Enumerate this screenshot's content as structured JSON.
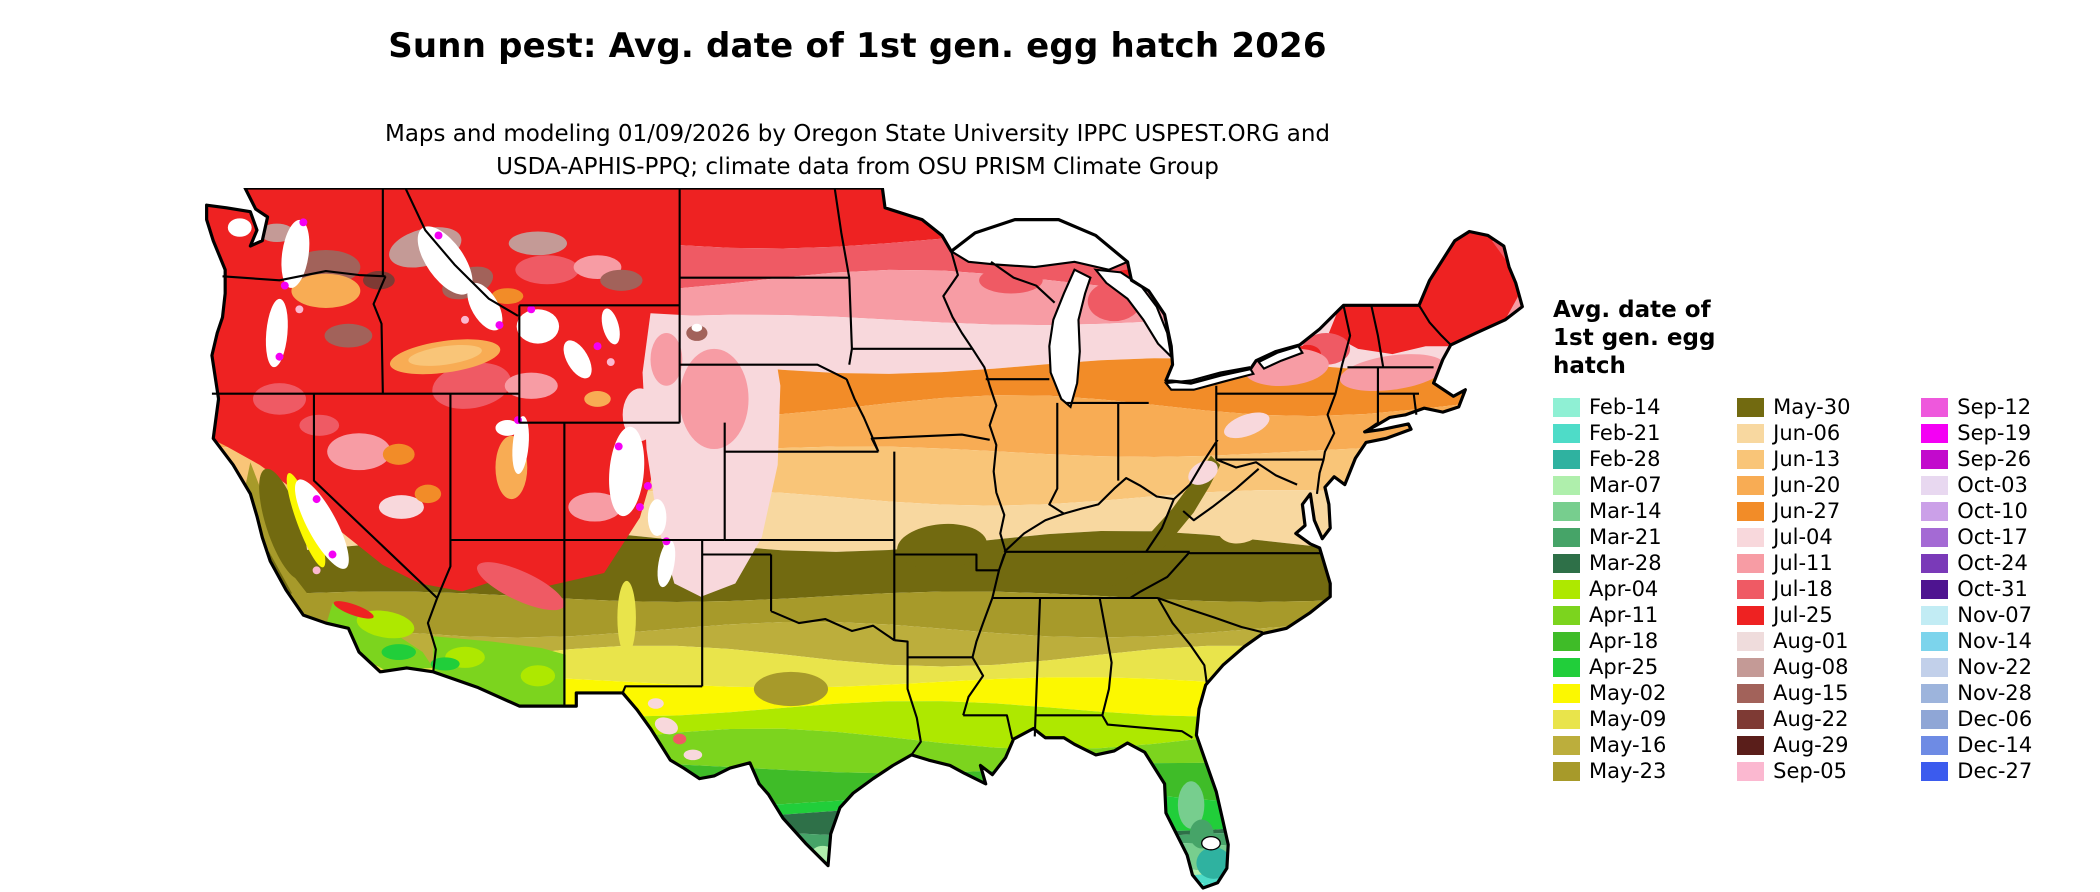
{
  "header": {
    "title": "Sunn pest: Avg. date of 1st gen. egg hatch 2026",
    "subtitle_line1": "Maps and modeling 01/09/2026 by Oregon State University IPPC USPEST.ORG and",
    "subtitle_line2": "USDA-APHIS-PPQ; climate data from OSU PRISM Climate Group"
  },
  "legend": {
    "title_lines": [
      "Avg. date of",
      "1st gen. egg",
      "hatch"
    ],
    "entries": [
      {
        "label": "Feb-14",
        "color": "#8FF0D4"
      },
      {
        "label": "Feb-21",
        "color": "#4EDCC8"
      },
      {
        "label": "Feb-28",
        "color": "#2FB2A0"
      },
      {
        "label": "Mar-07",
        "color": "#AFEFAC"
      },
      {
        "label": "Mar-14",
        "color": "#77CE8E"
      },
      {
        "label": "Mar-21",
        "color": "#46A468"
      },
      {
        "label": "Mar-28",
        "color": "#2E7048"
      },
      {
        "label": "Apr-04",
        "color": "#AEE800"
      },
      {
        "label": "Apr-11",
        "color": "#7CD41E"
      },
      {
        "label": "Apr-18",
        "color": "#3FBC28"
      },
      {
        "label": "Apr-25",
        "color": "#21CE3A"
      },
      {
        "label": "May-02",
        "color": "#FCF800"
      },
      {
        "label": "May-09",
        "color": "#E9E44B"
      },
      {
        "label": "May-16",
        "color": "#BCAE3C"
      },
      {
        "label": "May-23",
        "color": "#A79A2A"
      },
      {
        "label": "May-30",
        "color": "#726A10"
      },
      {
        "label": "Jun-06",
        "color": "#F8D8A0"
      },
      {
        "label": "Jun-13",
        "color": "#F9C578"
      },
      {
        "label": "Jun-20",
        "color": "#F8AC54"
      },
      {
        "label": "Jun-27",
        "color": "#F28C28"
      },
      {
        "label": "Jul-04",
        "color": "#F8D8DC"
      },
      {
        "label": "Jul-11",
        "color": "#F79CA4"
      },
      {
        "label": "Jul-18",
        "color": "#EF5A64"
      },
      {
        "label": "Jul-25",
        "color": "#EE2222"
      },
      {
        "label": "Aug-01",
        "color": "#EFDCDC"
      },
      {
        "label": "Aug-08",
        "color": "#C49A96"
      },
      {
        "label": "Aug-15",
        "color": "#A2625A"
      },
      {
        "label": "Aug-22",
        "color": "#7E3A34"
      },
      {
        "label": "Aug-29",
        "color": "#5A1E1A"
      },
      {
        "label": "Sep-05",
        "color": "#FBB8D0"
      },
      {
        "label": "Sep-12",
        "color": "#EE58DC"
      },
      {
        "label": "Sep-19",
        "color": "#F400F4"
      },
      {
        "label": "Sep-26",
        "color": "#C20ACC"
      },
      {
        "label": "Oct-03",
        "color": "#E8D8F0"
      },
      {
        "label": "Oct-10",
        "color": "#CBA0E8"
      },
      {
        "label": "Oct-17",
        "color": "#A46AD4"
      },
      {
        "label": "Oct-24",
        "color": "#7A3AB8"
      },
      {
        "label": "Oct-31",
        "color": "#4E1490"
      },
      {
        "label": "Nov-07",
        "color": "#C2ECF4"
      },
      {
        "label": "Nov-14",
        "color": "#7CD4EC"
      },
      {
        "label": "Nov-22",
        "color": "#C2D0EA"
      },
      {
        "label": "Nov-28",
        "color": "#9DB4DC"
      },
      {
        "label": "Dec-06",
        "color": "#8FA6D6"
      },
      {
        "label": "Dec-14",
        "color": "#6E8BE4"
      },
      {
        "label": "Dec-27",
        "color": "#3B5BEE"
      }
    ]
  },
  "map": {
    "region": "Continental United States",
    "no_data_color": "#FFFFFF",
    "outline_color": "#000000",
    "band_boundaries_y": [
      0,
      40,
      70,
      100,
      135,
      165,
      200,
      235,
      268,
      310,
      335,
      355,
      375,
      395,
      418,
      440,
      462,
      480,
      492,
      502,
      512,
      520,
      526,
      530,
      534
    ],
    "bands_north_to_south": [
      "Jul-25",
      "Jul-18",
      "Jul-11",
      "Jul-04",
      "Jun-27",
      "Jun-20",
      "Jun-13",
      "Jun-06",
      "May-30",
      "May-23",
      "May-16",
      "May-09",
      "May-02",
      "Apr-04",
      "Apr-11",
      "Apr-18",
      "Apr-25",
      "Mar-28",
      "Mar-21",
      "Mar-14",
      "Mar-07",
      "Feb-28",
      "Feb-21",
      "Feb-14"
    ]
  }
}
